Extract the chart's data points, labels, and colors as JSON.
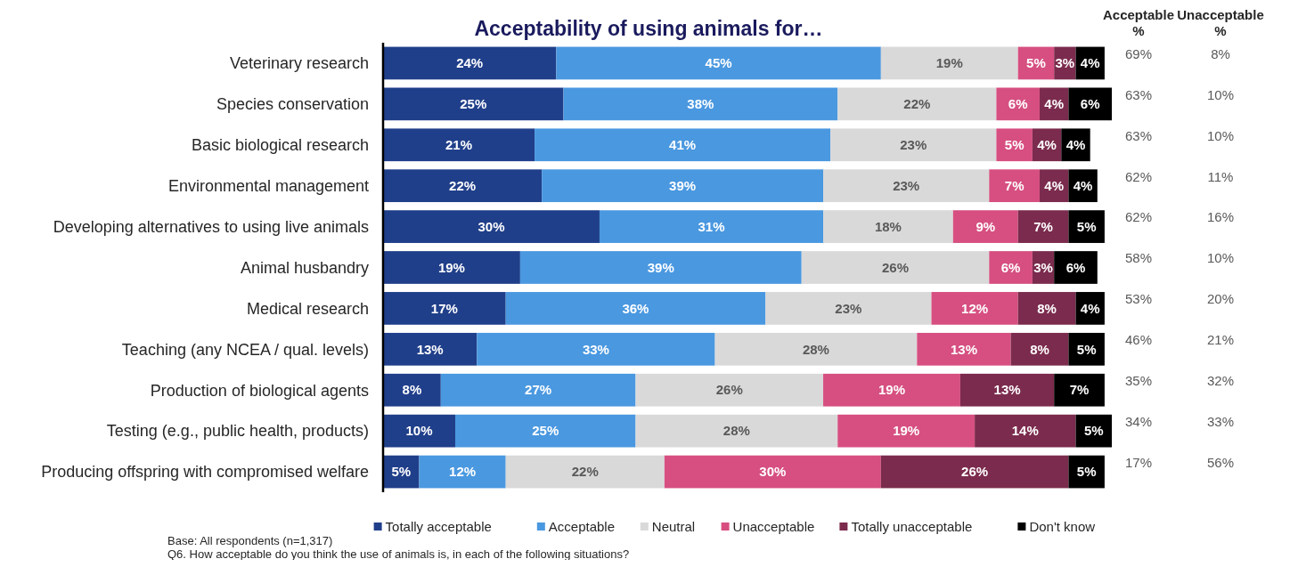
{
  "chart_data": {
    "type": "bar",
    "orientation": "horizontal",
    "stacked": true,
    "title": "Acceptability of using animals for…",
    "categories": [
      "Veterinary research",
      "Species conservation",
      "Basic biological research",
      "Environmental management",
      "Developing alternatives to using live animals",
      "Animal husbandry",
      "Medical research",
      "Teaching (any NCEA / qual. levels)",
      "Production of biological agents",
      "Testing (e.g., public health, products)",
      "Producing offspring with compromised welfare"
    ],
    "series": [
      {
        "name": "Totally acceptable",
        "color": "#203f8a",
        "values": [
          24,
          25,
          21,
          22,
          30,
          19,
          17,
          13,
          8,
          10,
          5
        ],
        "value_labels": [
          "24%",
          "25%",
          "21%",
          "22%",
          "30%",
          "19%",
          "17%",
          "13%",
          "8%",
          "10%",
          "5%"
        ]
      },
      {
        "name": "Acceptable",
        "color": "#4a98e0",
        "values": [
          45,
          38,
          41,
          39,
          31,
          39,
          36,
          33,
          27,
          25,
          12
        ],
        "value_labels": [
          "45%",
          "38%",
          "41%",
          "39%",
          "31%",
          "39%",
          "36%",
          "33%",
          "27%",
          "25%",
          "12%"
        ]
      },
      {
        "name": "Neutral",
        "color": "#d9d9d9",
        "values": [
          19,
          22,
          23,
          23,
          18,
          26,
          23,
          28,
          26,
          28,
          22
        ],
        "value_labels": [
          "19%",
          "22%",
          "23%",
          "23%",
          "18%",
          "26%",
          "23%",
          "28%",
          "26%",
          "28%",
          "22%"
        ]
      },
      {
        "name": "Unacceptable",
        "color": "#d64f80",
        "values": [
          5,
          6,
          5,
          7,
          9,
          6,
          12,
          13,
          19,
          19,
          30
        ],
        "value_labels": [
          "5%",
          "6%",
          "5%",
          "7%",
          "9%",
          "6%",
          "12%",
          "13%",
          "19%",
          "19%",
          "30%"
        ]
      },
      {
        "name": "Totally unacceptable",
        "color": "#7b2b4d",
        "values": [
          3,
          4,
          4,
          4,
          7,
          3,
          8,
          8,
          13,
          14,
          26
        ],
        "value_labels": [
          "3%",
          "4%",
          "4%",
          "4%",
          "7%",
          "3%",
          "8%",
          "8%",
          "13%",
          "14%",
          "26%"
        ]
      },
      {
        "name": "Don't know",
        "color": "#000000",
        "values": [
          4,
          6,
          4,
          4,
          5,
          6,
          4,
          5,
          7,
          5,
          5
        ],
        "value_labels": [
          "4%",
          "6%",
          "4%",
          "4%",
          "5%",
          "6%",
          "4%",
          "5%",
          "7%",
          "5%",
          "5%"
        ]
      }
    ],
    "legend": "bottom",
    "tick_labels": "y",
    "annotations": [
      "Acceptable %",
      "Unacceptable %",
      "69%",
      "8%",
      "63%",
      "10%",
      "63%",
      "10%",
      "62%",
      "11%",
      "62%",
      "16%",
      "58%",
      "10%",
      "53%",
      "20%",
      "46%",
      "21%",
      "35%",
      "32%",
      "34%",
      "33%",
      "17%",
      "56%",
      "Base: All respondents (n=1,317)",
      "Q6. How acceptable do you think the use of animals is, in each of the following situations?"
    ]
  }
}
